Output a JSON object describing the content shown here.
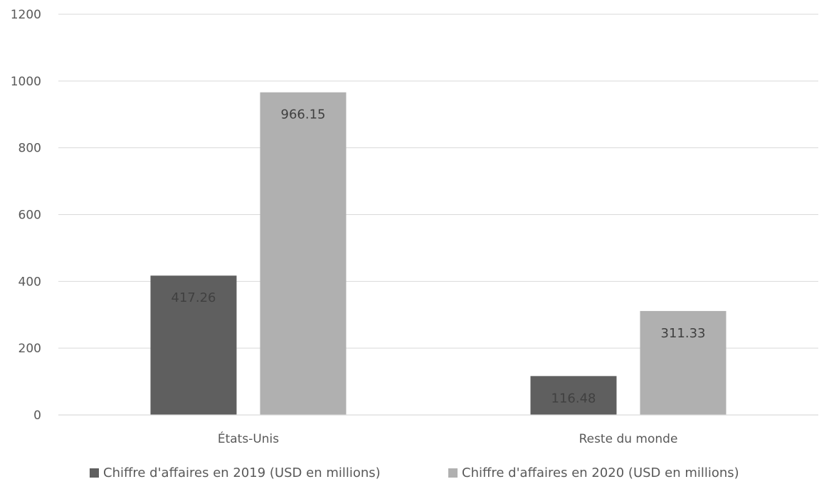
{
  "chart_data": {
    "type": "bar",
    "categories": [
      "États-Unis",
      "Reste du monde"
    ],
    "series": [
      {
        "name": "Chiffre d'affaires en 2019 (USD en millions)",
        "values": [
          417.26,
          116.48
        ],
        "color": "#5f5f5f",
        "label_color": "#404040"
      },
      {
        "name": "Chiffre d'affaires en 2020 (USD en millions)",
        "values": [
          966.15,
          311.33
        ],
        "color": "#b0b0b0",
        "label_color": "#404040"
      }
    ],
    "data_labels": [
      [
        "417.26",
        "116.48"
      ],
      [
        "966.15",
        "311.33"
      ]
    ],
    "yticks": [
      "0",
      "200",
      "400",
      "600",
      "800",
      "1000",
      "1200"
    ],
    "ylim": [
      0,
      1200
    ],
    "title": "",
    "xlabel": "",
    "ylabel": "",
    "grid": true,
    "legend_position": "bottom"
  }
}
